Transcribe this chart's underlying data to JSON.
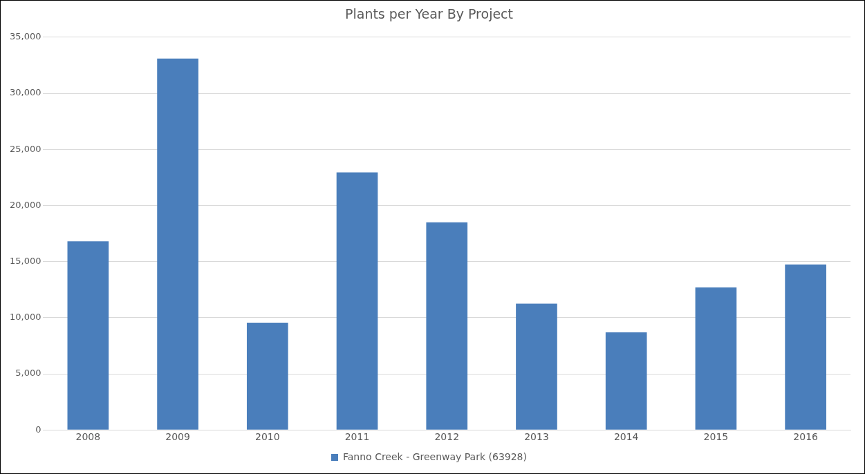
{
  "chart_data": {
    "type": "bar",
    "title": "Plants per Year By Project",
    "categories": [
      "2008",
      "2009",
      "2010",
      "2011",
      "2012",
      "2013",
      "2014",
      "2015",
      "2016"
    ],
    "series": [
      {
        "name": "Fanno Creek - Greenway Park (63928)",
        "color": "#4a7ebb",
        "values": [
          16800,
          33100,
          9550,
          22950,
          18500,
          11250,
          8700,
          12700,
          14750
        ]
      }
    ],
    "ylim": [
      0,
      35000
    ],
    "yticks": [
      {
        "value": 0,
        "label": "0"
      },
      {
        "value": 5000,
        "label": "5,000"
      },
      {
        "value": 10000,
        "label": "10,000"
      },
      {
        "value": 15000,
        "label": "15,000"
      },
      {
        "value": 20000,
        "label": "20,000"
      },
      {
        "value": 25000,
        "label": "25,000"
      },
      {
        "value": 30000,
        "label": "30,000"
      },
      {
        "value": 35000,
        "label": "35,000"
      }
    ],
    "grid": "y",
    "legend": "bottom"
  }
}
